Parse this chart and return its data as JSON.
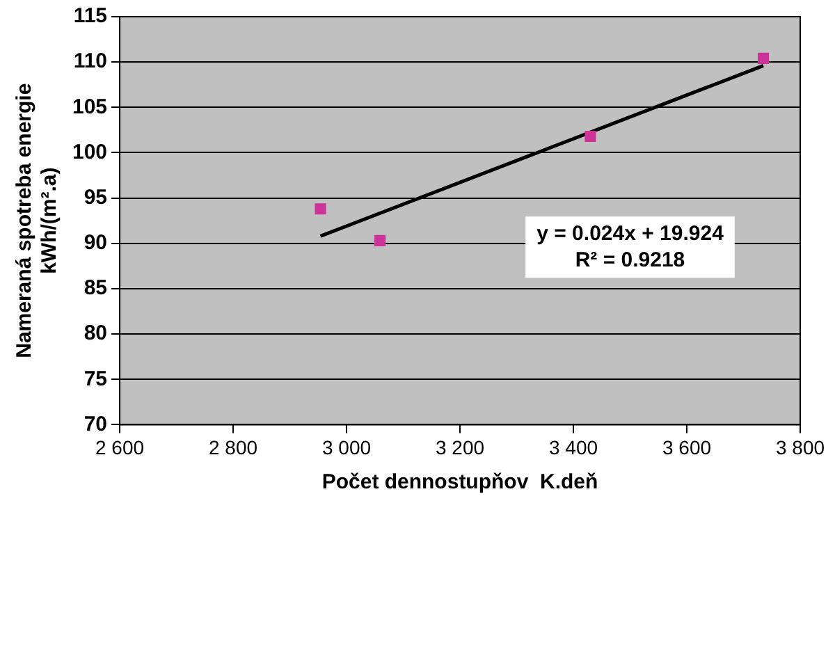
{
  "chart_data": {
    "type": "scatter",
    "xlabel": "Počet dennostupňov  K.deň",
    "ylabel": "Nameraná spotreba energie\nkWh/(m².a)",
    "series": [
      {
        "color": "#cc3399",
        "marker": "square",
        "x": [
          2954,
          3059,
          3430,
          3735
        ],
        "values": [
          93.8,
          90.3,
          101.8,
          110.4
        ]
      },
      {
        "type": "line",
        "color": "#000000",
        "marker": "none",
        "x": [
          2954,
          3735
        ],
        "values": [
          90.8,
          109.6
        ]
      }
    ],
    "xlim": [
      2600,
      3800
    ],
    "xticks": [
      {
        "value": 2600,
        "label": "2 600"
      },
      {
        "value": 2800,
        "label": "2 800"
      },
      {
        "value": 3000,
        "label": "3 000"
      },
      {
        "value": 3200,
        "label": "3 200"
      },
      {
        "value": 3400,
        "label": "3 400"
      },
      {
        "value": 3600,
        "label": "3 600"
      },
      {
        "value": 3800,
        "label": "3 800"
      }
    ],
    "ylim": [
      70,
      115
    ],
    "yticks": [
      70,
      75,
      80,
      85,
      90,
      95,
      100,
      105,
      110,
      115
    ],
    "grid": "y",
    "line_style": "solid",
    "annotations": [
      "y = 0.024x + 19.924",
      "R² = 0.9218"
    ]
  }
}
